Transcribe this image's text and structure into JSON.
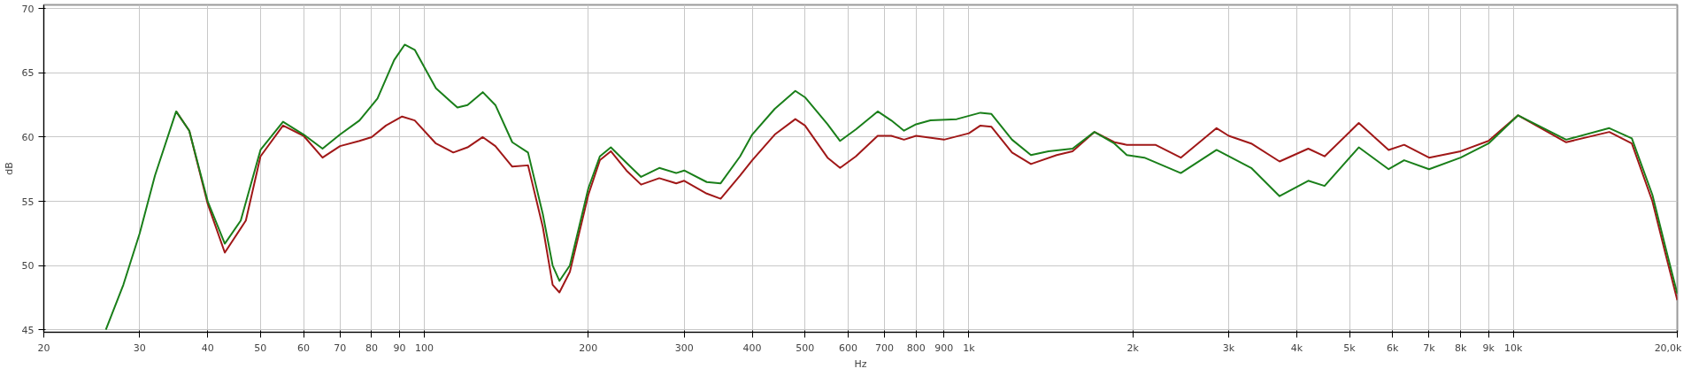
{
  "chart_data": {
    "type": "line",
    "xlabel": "Hz",
    "ylabel": "dB",
    "log": "x",
    "grid": true,
    "line_style": "solid",
    "marker": "none",
    "xlim": [
      20,
      20000
    ],
    "ylim": [
      44.8,
      70.3
    ],
    "xticks": [
      20,
      30,
      40,
      50,
      60,
      70,
      80,
      90,
      100,
      200,
      300,
      400,
      500,
      600,
      700,
      800,
      900,
      {
        "value": 1000,
        "label": "1k"
      },
      {
        "value": 2000,
        "label": "2k"
      },
      {
        "value": 3000,
        "label": "3k"
      },
      {
        "value": 4000,
        "label": "4k"
      },
      {
        "value": 5000,
        "label": "5k"
      },
      {
        "value": 6000,
        "label": "6k"
      },
      {
        "value": 7000,
        "label": "7k"
      },
      {
        "value": 8000,
        "label": "8k"
      },
      {
        "value": 9000,
        "label": "9k"
      },
      {
        "value": 10000,
        "label": "10k"
      },
      {
        "value": 20000,
        "label": "20,0k"
      }
    ],
    "yticks": [
      45,
      50,
      55,
      60,
      65,
      70
    ],
    "series": [
      {
        "color": "#1a7f1a",
        "x": [
          26,
          28,
          30,
          32,
          35,
          37,
          40,
          43,
          46,
          50,
          55,
          60,
          65,
          70,
          76,
          82,
          88,
          92,
          96,
          105,
          115,
          120,
          128,
          135,
          145,
          155,
          165,
          172,
          177,
          185,
          200,
          210,
          220,
          235,
          250,
          270,
          290,
          300,
          330,
          350,
          380,
          400,
          440,
          480,
          500,
          550,
          580,
          620,
          680,
          720,
          760,
          800,
          850,
          950,
          1050,
          1100,
          1200,
          1300,
          1400,
          1550,
          1700,
          1850,
          1950,
          2100,
          2450,
          2850,
          3300,
          3720,
          4200,
          4500,
          5200,
          5900,
          6300,
          7000,
          8000,
          9000,
          10200,
          12500,
          15000,
          16500,
          18000,
          19000,
          20000
        ],
        "values": [
          45,
          48.5,
          52.5,
          57,
          62,
          60.5,
          55,
          51.7,
          53.5,
          59,
          61.2,
          60.2,
          59.1,
          60.2,
          61.3,
          63,
          66,
          67.2,
          66.8,
          63.8,
          62.3,
          62.5,
          63.5,
          62.5,
          59.6,
          58.8,
          54,
          50,
          48.8,
          50,
          56,
          58.5,
          59.2,
          58,
          56.9,
          57.6,
          57.2,
          57.4,
          56.5,
          56.4,
          58.5,
          60.2,
          62.2,
          63.6,
          63.1,
          61,
          59.7,
          60.6,
          62,
          61.3,
          60.5,
          61,
          61.3,
          61.4,
          61.9,
          61.8,
          59.8,
          58.6,
          58.9,
          59.1,
          60.4,
          59.5,
          58.6,
          58.4,
          57.2,
          59,
          57.6,
          55.4,
          56.6,
          56.2,
          59.2,
          57.5,
          58.2,
          57.5,
          58.4,
          59.5,
          61.7,
          59.8,
          60.7,
          59.9,
          55.5,
          51.5,
          47.8
        ]
      },
      {
        "color": "#a01818",
        "x": [
          35,
          37,
          40,
          43,
          47,
          50,
          55,
          60,
          65,
          70,
          76,
          80,
          85,
          91,
          96,
          105,
          113,
          120,
          128,
          135,
          145,
          155,
          165,
          172,
          177,
          185,
          200,
          210,
          220,
          235,
          250,
          270,
          290,
          300,
          330,
          350,
          380,
          400,
          440,
          480,
          500,
          550,
          580,
          620,
          680,
          720,
          760,
          800,
          900,
          1000,
          1050,
          1100,
          1200,
          1300,
          1450,
          1550,
          1700,
          1850,
          1950,
          2200,
          2450,
          2850,
          3000,
          3300,
          3720,
          4200,
          4500,
          5200,
          5900,
          6300,
          7000,
          8000,
          9000,
          10200,
          12500,
          15000,
          16500,
          18000,
          19000,
          20000
        ],
        "values": [
          62,
          60.5,
          54.8,
          51,
          53.5,
          58.5,
          60.9,
          60.1,
          58.4,
          59.3,
          59.7,
          60,
          60.9,
          61.6,
          61.3,
          59.5,
          58.8,
          59.2,
          60,
          59.3,
          57.7,
          57.8,
          53,
          48.5,
          47.9,
          49.5,
          55.5,
          58.2,
          58.9,
          57.4,
          56.3,
          56.8,
          56.4,
          56.6,
          55.6,
          55.2,
          57,
          58.2,
          60.2,
          61.4,
          60.9,
          58.4,
          57.6,
          58.5,
          60.1,
          60.1,
          59.8,
          60.1,
          59.8,
          60.3,
          60.9,
          60.8,
          58.8,
          57.9,
          58.6,
          58.9,
          60.4,
          59.6,
          59.4,
          59.4,
          58.4,
          60.7,
          60.1,
          59.5,
          58.1,
          59.1,
          58.5,
          61.1,
          59,
          59.4,
          58.4,
          58.9,
          59.7,
          61.7,
          59.6,
          60.4,
          59.5,
          55,
          51,
          47.3
        ]
      }
    ]
  }
}
